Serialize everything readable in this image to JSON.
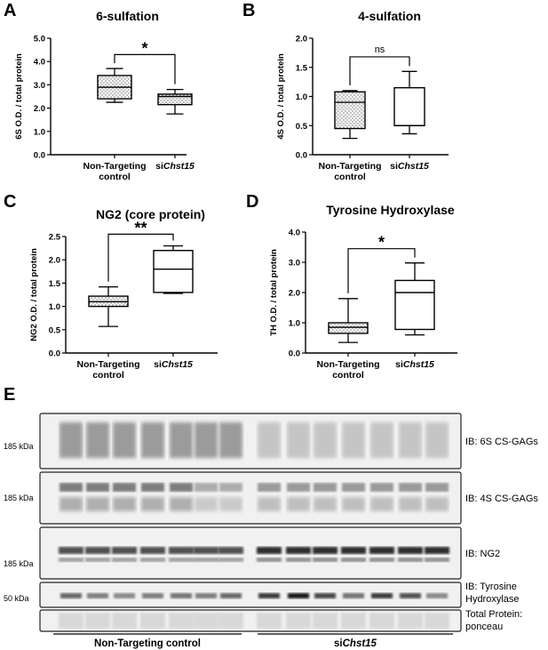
{
  "panel_letters": [
    "A",
    "B",
    "C",
    "D",
    "E"
  ],
  "chart_data": [
    {
      "panel": "A",
      "type": "box",
      "title": "6-sulfation",
      "ylabel": "6S O.D. / total protein",
      "ylim": [
        0,
        5
      ],
      "yticks": [
        "0.0",
        "1.0",
        "2.0",
        "3.0",
        "4.0",
        "5.0"
      ],
      "ytick_values": [
        0,
        1,
        2,
        3,
        4,
        5
      ],
      "categories": [
        {
          "line1": "Non-Targeting",
          "line2": "control",
          "prefix": "",
          "italic": ""
        },
        {
          "line1": "",
          "line2": "",
          "prefix": "si",
          "italic": "Chst15"
        }
      ],
      "boxes": [
        {
          "min": 2.25,
          "q1": 2.4,
          "median": 2.9,
          "q3": 3.4,
          "max": 3.7,
          "fill": "dots"
        },
        {
          "min": 1.75,
          "q1": 2.15,
          "median": 2.5,
          "q3": 2.6,
          "max": 2.8,
          "fill": "dots"
        }
      ],
      "significance": {
        "label": "*",
        "y": 4.3
      }
    },
    {
      "panel": "B",
      "type": "box",
      "title": "4-sulfation",
      "ylabel": "4S O.D. / total protein",
      "ylim": [
        0,
        2
      ],
      "yticks": [
        "0.0",
        "0.5",
        "1.0",
        "1.5",
        "2.0"
      ],
      "ytick_values": [
        0,
        0.5,
        1,
        1.5,
        2
      ],
      "categories": [
        {
          "line1": "Non-Targeting",
          "line2": "control",
          "prefix": "",
          "italic": ""
        },
        {
          "line1": "",
          "line2": "",
          "prefix": "si",
          "italic": "Chst15"
        }
      ],
      "boxes": [
        {
          "min": 0.28,
          "q1": 0.45,
          "median": 0.9,
          "q3": 1.08,
          "max": 1.1,
          "fill": "dots"
        },
        {
          "min": 0.36,
          "q1": 0.5,
          "median": 0.5,
          "q3": 1.15,
          "max": 1.43,
          "fill": "none"
        }
      ],
      "significance": {
        "label": "ns",
        "y": 1.68
      }
    },
    {
      "panel": "C",
      "type": "box",
      "title": "NG2 (core protein)",
      "ylabel": "NG2 O.D. / total protein",
      "ylim": [
        0,
        2.5
      ],
      "yticks": [
        "0.0",
        "0.5",
        "1.0",
        "1.5",
        "2.0",
        "2.5"
      ],
      "ytick_values": [
        0,
        0.5,
        1,
        1.5,
        2,
        2.5
      ],
      "categories": [
        {
          "line1": "Non-Targeting",
          "line2": "control",
          "prefix": "",
          "italic": ""
        },
        {
          "line1": "",
          "line2": "",
          "prefix": "si",
          "italic": "Chst15"
        }
      ],
      "boxes": [
        {
          "min": 0.57,
          "q1": 1.0,
          "median": 1.1,
          "q3": 1.22,
          "max": 1.42,
          "fill": "dots"
        },
        {
          "min": 1.28,
          "q1": 1.3,
          "median": 1.8,
          "q3": 2.2,
          "max": 2.3,
          "fill": "none"
        }
      ],
      "significance": {
        "label": "**",
        "y": 2.55
      }
    },
    {
      "panel": "D",
      "type": "box",
      "title": "Tyrosine Hydroxylase",
      "ylabel": "TH O.D. / total protein",
      "ylim": [
        0,
        4
      ],
      "yticks": [
        "0.0",
        "1.0",
        "2.0",
        "3.0",
        "4.0"
      ],
      "ytick_values": [
        0,
        1,
        2,
        3,
        4
      ],
      "categories": [
        {
          "line1": "Non-Targeting",
          "line2": "control",
          "prefix": "",
          "italic": ""
        },
        {
          "line1": "",
          "line2": "",
          "prefix": "si",
          "italic": "Chst15"
        }
      ],
      "boxes": [
        {
          "min": 0.35,
          "q1": 0.65,
          "median": 0.85,
          "q3": 1.0,
          "max": 1.8,
          "fill": "dots"
        },
        {
          "min": 0.6,
          "q1": 0.78,
          "median": 2.0,
          "q3": 2.4,
          "max": 2.98,
          "fill": "none"
        }
      ],
      "significance": {
        "label": "*",
        "y": 3.45
      }
    }
  ],
  "blots": {
    "rows": [
      {
        "kda": "185 kDa",
        "label": [
          "IB: 6S CS-GAGs"
        ]
      },
      {
        "kda": "185 kDa",
        "label": [
          "IB: 4S CS-GAGs"
        ]
      },
      {
        "kda": "185 kDa",
        "label": [
          "IB: NG2"
        ]
      },
      {
        "kda": "50 kDa",
        "label": [
          "IB: Tyrosine",
          "Hydroxylase"
        ]
      },
      {
        "kda": "",
        "label": [
          "Total Protein:",
          "ponceau"
        ]
      }
    ],
    "group_left": "Non-Targeting control",
    "group_right_prefix": "si",
    "group_right_italic": "Chst15"
  }
}
